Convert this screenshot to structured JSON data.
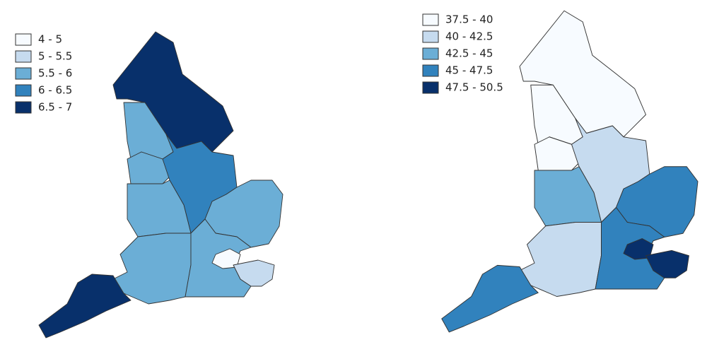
{
  "maps": [
    {
      "legend": [
        {
          "label": "4 - 5",
          "color": "#f7fbff"
        },
        {
          "label": "5 - 5.5",
          "color": "#c6dbef"
        },
        {
          "label": "5.5 - 6",
          "color": "#6baed6"
        },
        {
          "label": "6 - 6.5",
          "color": "#3182bd"
        },
        {
          "label": "6.5 - 7",
          "color": "#08306b"
        }
      ]
    },
    {
      "legend": [
        {
          "label": "37.5 - 40",
          "color": "#f7fbff"
        },
        {
          "label": "40 - 42.5",
          "color": "#c6dbef"
        },
        {
          "label": "42.5 - 45",
          "color": "#6baed6"
        },
        {
          "label": "45 - 47.5",
          "color": "#3182bd"
        },
        {
          "label": "47.5 - 50.5",
          "color": "#08306b"
        }
      ]
    }
  ]
}
